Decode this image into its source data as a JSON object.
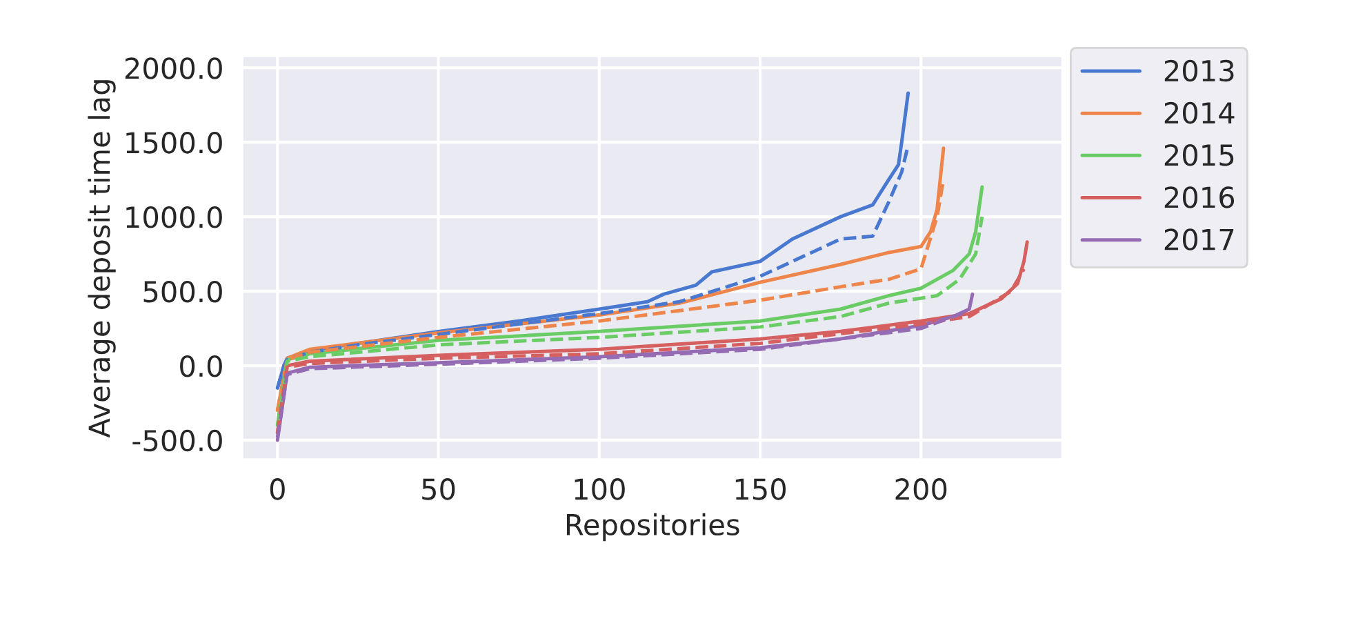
{
  "chart_data": {
    "type": "line",
    "xlabel": "Repositories",
    "ylabel": "Average deposit time lag",
    "xlim": [
      -11,
      244
    ],
    "ylim": [
      -630,
      2080
    ],
    "xticks": [
      0,
      50,
      100,
      150,
      200
    ],
    "yticks": [
      {
        "value": -500,
        "label": "-500.0"
      },
      {
        "value": 0,
        "label": "0.0"
      },
      {
        "value": 500,
        "label": "500.0"
      },
      {
        "value": 1000,
        "label": "1000.0"
      },
      {
        "value": 1500,
        "label": "1500.0"
      },
      {
        "value": 2000,
        "label": "2000.0"
      }
    ],
    "grid": true,
    "legend": "top right",
    "series": [
      {
        "name": "2013",
        "color": "#4878d0",
        "line_style": "solid",
        "x": [
          0,
          2,
          3,
          10,
          25,
          50,
          75,
          100,
          115,
          120,
          130,
          135,
          150,
          160,
          175,
          185,
          190,
          193,
          194,
          196
        ],
        "values": [
          -150,
          0,
          50,
          100,
          150,
          230,
          300,
          380,
          430,
          480,
          540,
          630,
          700,
          850,
          1000,
          1080,
          1250,
          1350,
          1500,
          1830
        ]
      },
      {
        "name": "2014",
        "color": "#ee854a",
        "line_style": "solid",
        "x": [
          0,
          3,
          10,
          50,
          100,
          125,
          150,
          175,
          190,
          200,
          203,
          205,
          207
        ],
        "values": [
          -300,
          50,
          110,
          220,
          340,
          420,
          560,
          680,
          760,
          800,
          900,
          1050,
          1460
        ]
      },
      {
        "name": "2015",
        "color": "#6acc64",
        "line_style": "solid",
        "x": [
          0,
          3,
          10,
          50,
          100,
          150,
          175,
          190,
          200,
          210,
          215,
          217,
          219
        ],
        "values": [
          -400,
          40,
          80,
          170,
          230,
          300,
          380,
          470,
          520,
          640,
          750,
          900,
          1200
        ]
      },
      {
        "name": "2016",
        "color": "#d65f5f",
        "line_style": "solid",
        "x": [
          0,
          3,
          10,
          50,
          100,
          150,
          175,
          200,
          215,
          225,
          230,
          232,
          233
        ],
        "values": [
          -450,
          0,
          30,
          70,
          110,
          180,
          230,
          300,
          350,
          450,
          550,
          700,
          830
        ]
      },
      {
        "name": "2017",
        "color": "#956cb4",
        "line_style": "solid",
        "x": [
          0,
          3,
          10,
          50,
          100,
          150,
          175,
          200,
          210,
          215,
          216
        ],
        "values": [
          -500,
          -50,
          -10,
          20,
          60,
          120,
          180,
          270,
          330,
          380,
          480
        ]
      },
      {
        "color": "#4878d0",
        "line_style": "dashed",
        "x": [
          0,
          2,
          3,
          10,
          25,
          50,
          75,
          100,
          125,
          150,
          175,
          185,
          190,
          194,
          196
        ],
        "values": [
          -150,
          0,
          40,
          90,
          140,
          210,
          280,
          350,
          430,
          600,
          850,
          870,
          1100,
          1300,
          1480
        ]
      },
      {
        "color": "#ee854a",
        "line_style": "dashed",
        "x": [
          0,
          3,
          10,
          50,
          100,
          150,
          175,
          190,
          200,
          205,
          207
        ],
        "values": [
          -300,
          40,
          90,
          190,
          300,
          440,
          530,
          580,
          650,
          1000,
          1250
        ]
      },
      {
        "color": "#6acc64",
        "line_style": "dashed",
        "x": [
          0,
          3,
          10,
          50,
          100,
          150,
          175,
          190,
          205,
          212,
          217,
          219
        ],
        "values": [
          -400,
          30,
          60,
          140,
          190,
          260,
          330,
          420,
          470,
          580,
          750,
          1000
        ]
      },
      {
        "color": "#d65f5f",
        "line_style": "dashed",
        "x": [
          0,
          3,
          10,
          50,
          100,
          150,
          200,
          215,
          228,
          232
        ],
        "values": [
          -450,
          -10,
          15,
          50,
          80,
          150,
          280,
          330,
          500,
          650
        ]
      },
      {
        "color": "#956cb4",
        "line_style": "dashed",
        "x": [
          0,
          3,
          10,
          50,
          100,
          150,
          200,
          214
        ],
        "values": [
          -480,
          -60,
          -20,
          10,
          50,
          110,
          250,
          360
        ]
      }
    ]
  }
}
